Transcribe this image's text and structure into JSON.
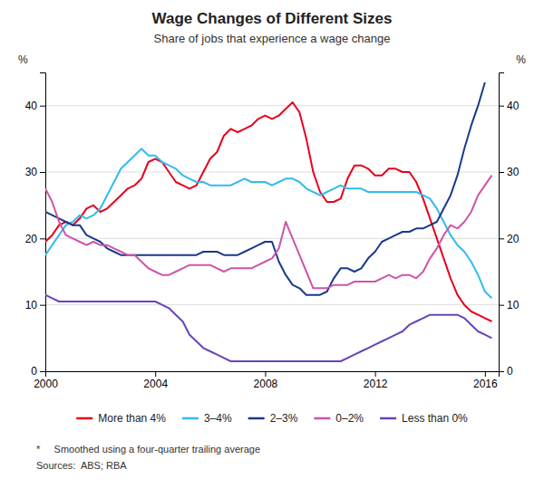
{
  "chart_data": {
    "type": "line",
    "title": "Wage Changes of Different Sizes",
    "subtitle": "Share of jobs that experience a wage change",
    "ylabel": "%",
    "y2label": "%",
    "annotations": [
      "*     Smoothed using a four-quarter trailing average",
      "Sources:  ABS; RBA"
    ],
    "xlim": [
      2000,
      2016.5
    ],
    "xticks": [
      2000,
      2004,
      2008,
      2012,
      2016
    ],
    "ylim": [
      0,
      45
    ],
    "yticks": [
      0,
      10,
      20,
      30,
      40
    ],
    "y2lim": [
      0,
      45
    ],
    "y2ticks": [
      0,
      10,
      20,
      30,
      40
    ],
    "grid": true,
    "legend": "bottom",
    "series": [
      {
        "name": "More than 4%",
        "color": "#e8001c",
        "x": [
          2000.0,
          2000.25,
          2000.5,
          2000.75,
          2001.0,
          2001.25,
          2001.5,
          2001.75,
          2002.0,
          2002.25,
          2002.5,
          2002.75,
          2003.0,
          2003.25,
          2003.5,
          2003.75,
          2004.0,
          2004.25,
          2004.5,
          2004.75,
          2005.0,
          2005.25,
          2005.5,
          2005.75,
          2006.0,
          2006.25,
          2006.5,
          2006.75,
          2007.0,
          2007.25,
          2007.5,
          2007.75,
          2008.0,
          2008.25,
          2008.5,
          2008.75,
          2009.0,
          2009.25,
          2009.5,
          2009.75,
          2010.0,
          2010.25,
          2010.5,
          2010.75,
          2011.0,
          2011.25,
          2011.5,
          2011.75,
          2012.0,
          2012.25,
          2012.5,
          2012.75,
          2013.0,
          2013.25,
          2013.5,
          2013.75,
          2014.0,
          2014.25,
          2014.5,
          2014.75,
          2015.0,
          2015.25,
          2015.5,
          2015.75,
          2016.0,
          2016.25
        ],
        "values": [
          19.5,
          20.5,
          22.0,
          22.5,
          22.0,
          23.0,
          24.5,
          25.0,
          24.0,
          24.5,
          25.5,
          26.5,
          27.5,
          28.0,
          29.0,
          31.5,
          32.0,
          31.5,
          30.0,
          28.5,
          28.0,
          27.5,
          28.0,
          30.0,
          32.0,
          33.0,
          35.5,
          36.5,
          36.0,
          36.5,
          37.0,
          38.0,
          38.5,
          38.0,
          38.5,
          39.5,
          40.5,
          39.0,
          35.0,
          30.0,
          27.0,
          25.5,
          25.5,
          26.0,
          29.0,
          31.0,
          31.0,
          30.5,
          29.5,
          29.5,
          30.5,
          30.5,
          30.0,
          30.0,
          28.5,
          26.0,
          23.0,
          20.0,
          17.0,
          14.0,
          11.5,
          10.0,
          9.0,
          8.5,
          8.0,
          7.5
        ]
      },
      {
        "name": "3–4%",
        "color": "#33bbee",
        "x": [
          2000.0,
          2000.25,
          2000.5,
          2000.75,
          2001.0,
          2001.25,
          2001.5,
          2001.75,
          2002.0,
          2002.25,
          2002.5,
          2002.75,
          2003.0,
          2003.25,
          2003.5,
          2003.75,
          2004.0,
          2004.25,
          2004.5,
          2004.75,
          2005.0,
          2005.25,
          2005.5,
          2005.75,
          2006.0,
          2006.25,
          2006.5,
          2006.75,
          2007.0,
          2007.25,
          2007.5,
          2007.75,
          2008.0,
          2008.25,
          2008.5,
          2008.75,
          2009.0,
          2009.25,
          2009.5,
          2009.75,
          2010.0,
          2010.25,
          2010.5,
          2010.75,
          2011.0,
          2011.25,
          2011.5,
          2011.75,
          2012.0,
          2012.25,
          2012.5,
          2012.75,
          2013.0,
          2013.25,
          2013.5,
          2013.75,
          2014.0,
          2014.25,
          2014.5,
          2014.75,
          2015.0,
          2015.25,
          2015.5,
          2015.75,
          2016.0,
          2016.25
        ],
        "values": [
          17.5,
          19.0,
          20.5,
          22.0,
          22.5,
          23.5,
          23.0,
          23.5,
          24.5,
          26.5,
          28.5,
          30.5,
          31.5,
          32.5,
          33.5,
          32.5,
          32.5,
          31.5,
          31.0,
          30.5,
          29.5,
          29.0,
          28.5,
          28.5,
          28.0,
          28.0,
          28.0,
          28.0,
          28.5,
          29.0,
          28.5,
          28.5,
          28.5,
          28.0,
          28.5,
          29.0,
          29.0,
          28.5,
          27.5,
          27.0,
          26.5,
          27.0,
          27.5,
          28.0,
          27.5,
          27.5,
          27.5,
          27.0,
          27.0,
          27.0,
          27.0,
          27.0,
          27.0,
          27.0,
          27.0,
          26.5,
          26.0,
          24.5,
          22.5,
          20.5,
          19.0,
          18.0,
          16.5,
          14.5,
          12.0,
          11.0
        ]
      },
      {
        "name": "2–3%",
        "color": "#1a3a8a",
        "x": [
          2000.0,
          2000.25,
          2000.5,
          2000.75,
          2001.0,
          2001.25,
          2001.5,
          2001.75,
          2002.0,
          2002.25,
          2002.5,
          2002.75,
          2003.0,
          2003.25,
          2003.5,
          2003.75,
          2004.0,
          2004.25,
          2004.5,
          2004.75,
          2005.0,
          2005.25,
          2005.5,
          2005.75,
          2006.0,
          2006.25,
          2006.5,
          2006.75,
          2007.0,
          2007.25,
          2007.5,
          2007.75,
          2008.0,
          2008.25,
          2008.5,
          2008.75,
          2009.0,
          2009.25,
          2009.5,
          2009.75,
          2010.0,
          2010.25,
          2010.5,
          2010.75,
          2011.0,
          2011.25,
          2011.5,
          2011.75,
          2012.0,
          2012.25,
          2012.5,
          2012.75,
          2013.0,
          2013.25,
          2013.5,
          2013.75,
          2014.0,
          2014.25,
          2014.5,
          2014.75,
          2015.0,
          2015.25,
          2015.5,
          2015.75,
          2016.0
        ],
        "values": [
          24.0,
          23.5,
          23.0,
          22.5,
          22.0,
          22.0,
          20.5,
          20.0,
          19.5,
          18.5,
          18.0,
          17.5,
          17.5,
          17.5,
          17.5,
          17.5,
          17.5,
          17.5,
          17.5,
          17.5,
          17.5,
          17.5,
          17.5,
          18.0,
          18.0,
          18.0,
          17.5,
          17.5,
          17.5,
          18.0,
          18.5,
          19.0,
          19.5,
          19.5,
          16.5,
          14.5,
          13.0,
          12.5,
          11.5,
          11.5,
          11.5,
          12.0,
          14.0,
          15.5,
          15.5,
          15.0,
          15.5,
          17.0,
          18.0,
          19.5,
          20.0,
          20.5,
          21.0,
          21.0,
          21.5,
          21.5,
          22.0,
          22.5,
          24.5,
          26.5,
          29.5,
          33.5,
          37.0,
          40.0,
          43.5
        ]
      },
      {
        "name": "0–2%",
        "color": "#cc55aa",
        "x": [
          2000.0,
          2000.25,
          2000.5,
          2000.75,
          2001.0,
          2001.25,
          2001.5,
          2001.75,
          2002.0,
          2002.25,
          2002.5,
          2002.75,
          2003.0,
          2003.25,
          2003.5,
          2003.75,
          2004.0,
          2004.25,
          2004.5,
          2004.75,
          2005.0,
          2005.25,
          2005.5,
          2005.75,
          2006.0,
          2006.25,
          2006.5,
          2006.75,
          2007.0,
          2007.25,
          2007.5,
          2007.75,
          2008.0,
          2008.25,
          2008.5,
          2008.75,
          2009.0,
          2009.25,
          2009.5,
          2009.75,
          2010.0,
          2010.25,
          2010.5,
          2010.75,
          2011.0,
          2011.25,
          2011.5,
          2011.75,
          2012.0,
          2012.25,
          2012.5,
          2012.75,
          2013.0,
          2013.25,
          2013.5,
          2013.75,
          2014.0,
          2014.25,
          2014.5,
          2014.75,
          2015.0,
          2015.25,
          2015.5,
          2015.75,
          2016.0,
          2016.25
        ],
        "values": [
          27.5,
          25.5,
          22.5,
          20.5,
          20.0,
          19.5,
          19.0,
          19.5,
          19.0,
          19.0,
          18.5,
          18.0,
          17.5,
          17.5,
          16.5,
          15.5,
          15.0,
          14.5,
          14.5,
          15.0,
          15.5,
          16.0,
          16.0,
          16.0,
          16.0,
          15.5,
          15.0,
          15.5,
          15.5,
          15.5,
          15.5,
          16.0,
          16.5,
          17.0,
          18.5,
          22.5,
          20.0,
          17.5,
          15.0,
          12.5,
          12.5,
          12.5,
          13.0,
          13.0,
          13.0,
          13.5,
          13.5,
          13.5,
          13.5,
          14.0,
          14.5,
          14.0,
          14.5,
          14.5,
          14.0,
          15.0,
          17.0,
          18.5,
          20.5,
          22.0,
          21.5,
          22.5,
          24.0,
          26.5,
          28.0,
          29.5
        ]
      },
      {
        "name": "Less than 0%",
        "color": "#6644bb",
        "x": [
          2000.0,
          2000.25,
          2000.5,
          2000.75,
          2001.0,
          2001.25,
          2001.5,
          2001.75,
          2002.0,
          2002.25,
          2002.5,
          2002.75,
          2003.0,
          2003.25,
          2003.5,
          2003.75,
          2004.0,
          2004.25,
          2004.5,
          2004.75,
          2005.0,
          2005.25,
          2005.5,
          2005.75,
          2006.0,
          2006.25,
          2006.5,
          2006.75,
          2007.0,
          2007.25,
          2007.5,
          2007.75,
          2008.0,
          2008.25,
          2008.5,
          2008.75,
          2009.0,
          2009.25,
          2009.5,
          2009.75,
          2010.0,
          2010.25,
          2010.5,
          2010.75,
          2011.0,
          2011.25,
          2011.5,
          2011.75,
          2012.0,
          2012.25,
          2012.5,
          2012.75,
          2013.0,
          2013.25,
          2013.5,
          2013.75,
          2014.0,
          2014.25,
          2014.5,
          2014.75,
          2015.0,
          2015.25,
          2015.5,
          2015.75,
          2016.0,
          2016.25
        ],
        "values": [
          11.5,
          11.0,
          10.5,
          10.5,
          10.5,
          10.5,
          10.5,
          10.5,
          10.5,
          10.5,
          10.5,
          10.5,
          10.5,
          10.5,
          10.5,
          10.5,
          10.5,
          10.0,
          9.5,
          8.5,
          7.5,
          5.5,
          4.5,
          3.5,
          3.0,
          2.5,
          2.0,
          1.5,
          1.5,
          1.5,
          1.5,
          1.5,
          1.5,
          1.5,
          1.5,
          1.5,
          1.5,
          1.5,
          1.5,
          1.5,
          1.5,
          1.5,
          1.5,
          1.5,
          2.0,
          2.5,
          3.0,
          3.5,
          4.0,
          4.5,
          5.0,
          5.5,
          6.0,
          7.0,
          7.5,
          8.0,
          8.5,
          8.5,
          8.5,
          8.5,
          8.5,
          8.0,
          7.0,
          6.0,
          5.5,
          5.0
        ]
      }
    ]
  }
}
